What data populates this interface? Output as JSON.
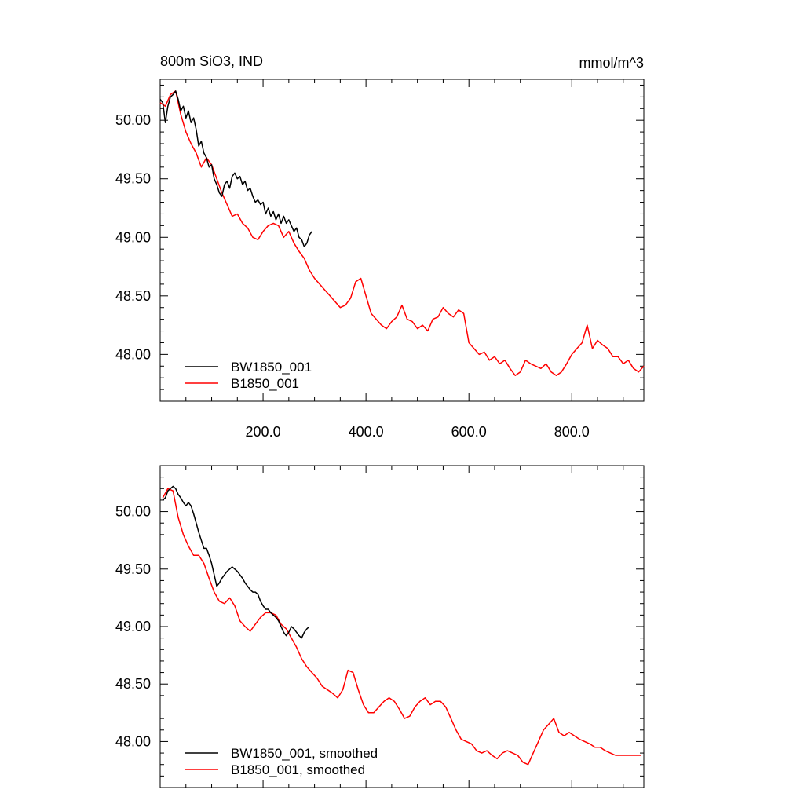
{
  "chart_data": [
    {
      "type": "line",
      "title_left": "800m SiO3, IND",
      "title_right": "mmol/m^3",
      "xlim": [
        0,
        940
      ],
      "ylim": [
        47.6,
        50.35
      ],
      "xticks": [
        200,
        400,
        600,
        800
      ],
      "xtick_labels": [
        "200.0",
        "400.0",
        "600.0",
        "800.0"
      ],
      "yticks": [
        48.0,
        48.5,
        49.0,
        49.5,
        50.0
      ],
      "ytick_labels": [
        "48.00",
        "48.50",
        "49.00",
        "49.50",
        "50.00"
      ],
      "legend_position": "bottom-left",
      "series": [
        {
          "name": "BW1850_001",
          "color": "#000000",
          "x": [
            0,
            5,
            10,
            15,
            20,
            25,
            30,
            35,
            40,
            45,
            50,
            55,
            60,
            65,
            70,
            75,
            80,
            85,
            90,
            95,
            100,
            105,
            110,
            115,
            120,
            125,
            130,
            135,
            140,
            145,
            150,
            155,
            160,
            165,
            170,
            175,
            180,
            185,
            190,
            195,
            200,
            205,
            210,
            215,
            220,
            225,
            230,
            235,
            240,
            245,
            250,
            255,
            260,
            265,
            270,
            275,
            280,
            285,
            290,
            295
          ],
          "values": [
            50.18,
            50.15,
            49.98,
            50.12,
            50.2,
            50.22,
            50.25,
            50.18,
            50.08,
            50.12,
            50.02,
            50.08,
            49.98,
            50.02,
            49.92,
            49.78,
            49.82,
            49.72,
            49.68,
            49.6,
            49.62,
            49.5,
            49.45,
            49.38,
            49.35,
            49.45,
            49.48,
            49.42,
            49.52,
            49.55,
            49.5,
            49.52,
            49.45,
            49.48,
            49.4,
            49.42,
            49.35,
            49.3,
            49.32,
            49.28,
            49.3,
            49.2,
            49.25,
            49.18,
            49.22,
            49.15,
            49.2,
            49.12,
            49.18,
            49.12,
            49.15,
            49.1,
            49.05,
            49.08,
            49.0,
            48.98,
            48.92,
            48.95,
            49.02,
            49.05
          ]
        },
        {
          "name": "B1850_001",
          "color": "#ff0000",
          "x": [
            0,
            10,
            20,
            30,
            40,
            50,
            60,
            70,
            80,
            90,
            100,
            110,
            120,
            130,
            140,
            150,
            160,
            170,
            180,
            190,
            200,
            210,
            220,
            230,
            240,
            250,
            260,
            270,
            280,
            290,
            300,
            310,
            320,
            330,
            340,
            350,
            360,
            370,
            380,
            390,
            400,
            410,
            420,
            430,
            440,
            450,
            460,
            470,
            480,
            490,
            500,
            510,
            520,
            530,
            540,
            550,
            560,
            570,
            580,
            590,
            600,
            610,
            620,
            630,
            640,
            650,
            660,
            670,
            680,
            690,
            700,
            710,
            720,
            730,
            740,
            750,
            760,
            770,
            780,
            790,
            800,
            810,
            820,
            830,
            840,
            850,
            860,
            870,
            880,
            890,
            900,
            910,
            920,
            930,
            940
          ],
          "values": [
            50.15,
            50.12,
            50.22,
            50.25,
            50.05,
            49.9,
            49.8,
            49.72,
            49.6,
            49.68,
            49.62,
            49.5,
            49.38,
            49.28,
            49.18,
            49.2,
            49.12,
            49.08,
            49.0,
            48.98,
            49.05,
            49.1,
            49.12,
            49.1,
            49.0,
            49.05,
            48.95,
            48.88,
            48.82,
            48.72,
            48.65,
            48.6,
            48.55,
            48.5,
            48.45,
            48.4,
            48.42,
            48.48,
            48.62,
            48.65,
            48.5,
            48.35,
            48.3,
            48.25,
            48.22,
            48.28,
            48.32,
            48.42,
            48.3,
            48.28,
            48.22,
            48.25,
            48.2,
            48.3,
            48.32,
            48.4,
            48.35,
            48.32,
            48.38,
            48.35,
            48.1,
            48.05,
            48.0,
            48.02,
            47.95,
            47.98,
            47.92,
            47.95,
            47.88,
            47.82,
            47.85,
            47.95,
            47.92,
            47.9,
            47.88,
            47.92,
            47.85,
            47.82,
            47.85,
            47.92,
            48.0,
            48.05,
            48.1,
            48.25,
            48.05,
            48.12,
            48.08,
            48.05,
            47.98,
            47.98,
            47.92,
            47.95,
            47.88,
            47.85,
            47.9
          ]
        }
      ]
    },
    {
      "type": "line",
      "xlim": [
        0,
        940
      ],
      "ylim": [
        47.6,
        50.4
      ],
      "yticks": [
        48.0,
        48.5,
        49.0,
        49.5,
        50.0
      ],
      "ytick_labels": [
        "48.00",
        "48.50",
        "49.00",
        "49.50",
        "50.00"
      ],
      "legend_position": "bottom-left",
      "series": [
        {
          "name": "BW1850_001, smoothed",
          "color": "#000000",
          "x": [
            5,
            10,
            15,
            20,
            25,
            30,
            35,
            40,
            45,
            50,
            55,
            60,
            65,
            70,
            75,
            80,
            85,
            90,
            95,
            100,
            105,
            110,
            115,
            120,
            125,
            130,
            135,
            140,
            145,
            150,
            155,
            160,
            165,
            170,
            175,
            180,
            185,
            190,
            195,
            200,
            205,
            210,
            215,
            220,
            225,
            230,
            235,
            240,
            245,
            250,
            255,
            260,
            265,
            270,
            275,
            280,
            285,
            290
          ],
          "values": [
            50.1,
            50.12,
            50.18,
            50.2,
            50.22,
            50.2,
            50.15,
            50.12,
            50.08,
            50.05,
            50.08,
            50.05,
            49.98,
            49.9,
            49.82,
            49.75,
            49.68,
            49.68,
            49.62,
            49.55,
            49.45,
            49.35,
            49.38,
            49.42,
            49.45,
            49.48,
            49.5,
            49.52,
            49.5,
            49.48,
            49.45,
            49.42,
            49.38,
            49.35,
            49.32,
            49.3,
            49.3,
            49.28,
            49.22,
            49.18,
            49.15,
            49.15,
            49.12,
            49.1,
            49.08,
            49.05,
            49.0,
            48.95,
            48.92,
            48.95,
            49.0,
            48.98,
            48.95,
            48.92,
            48.9,
            48.95,
            48.98,
            49.0
          ]
        },
        {
          "name": "B1850_001, smoothed",
          "color": "#ff0000",
          "x": [
            5,
            15,
            25,
            35,
            45,
            55,
            65,
            75,
            85,
            95,
            105,
            115,
            125,
            135,
            145,
            155,
            165,
            175,
            185,
            195,
            205,
            215,
            225,
            235,
            245,
            255,
            265,
            275,
            285,
            295,
            305,
            315,
            325,
            335,
            345,
            355,
            365,
            375,
            385,
            395,
            405,
            415,
            425,
            435,
            445,
            455,
            465,
            475,
            485,
            495,
            505,
            515,
            525,
            535,
            545,
            555,
            565,
            575,
            585,
            595,
            605,
            615,
            625,
            635,
            645,
            655,
            665,
            675,
            685,
            695,
            705,
            715,
            725,
            735,
            745,
            755,
            765,
            775,
            785,
            795,
            805,
            815,
            825,
            835,
            845,
            855,
            865,
            875,
            885,
            895,
            905,
            915,
            925,
            935
          ],
          "values": [
            50.12,
            50.2,
            50.18,
            49.95,
            49.8,
            49.7,
            49.62,
            49.62,
            49.55,
            49.42,
            49.3,
            49.22,
            49.2,
            49.25,
            49.18,
            49.05,
            49.0,
            48.96,
            49.02,
            49.08,
            49.12,
            49.12,
            49.1,
            49.02,
            48.98,
            48.9,
            48.82,
            48.72,
            48.65,
            48.6,
            48.55,
            48.48,
            48.45,
            48.42,
            48.38,
            48.45,
            48.62,
            48.6,
            48.45,
            48.32,
            48.25,
            48.25,
            48.3,
            48.35,
            48.38,
            48.35,
            48.28,
            48.2,
            48.22,
            48.3,
            48.35,
            48.38,
            48.32,
            48.35,
            48.35,
            48.3,
            48.2,
            48.1,
            48.02,
            48.0,
            47.98,
            47.92,
            47.9,
            47.92,
            47.88,
            47.85,
            47.9,
            47.92,
            47.9,
            47.88,
            47.82,
            47.8,
            47.9,
            48.0,
            48.1,
            48.15,
            48.2,
            48.08,
            48.05,
            48.08,
            48.05,
            48.02,
            48.0,
            47.98,
            47.95,
            47.95,
            47.92,
            47.9,
            47.88,
            47.88,
            47.88,
            47.88,
            47.88,
            47.88
          ]
        }
      ]
    }
  ]
}
